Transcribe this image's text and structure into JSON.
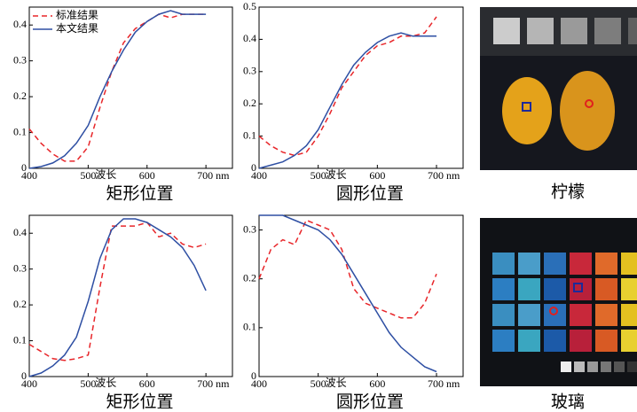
{
  "chart_data": [
    {
      "type": "line",
      "caption": "矩形位置",
      "xlabel": "波长",
      "xlim": [
        400,
        745
      ],
      "ylim": [
        0,
        0.45
      ],
      "xticks": [
        400,
        500,
        600,
        {
          "value": 700,
          "label": "700 nm"
        }
      ],
      "yticks": [
        0,
        0.1,
        0.2,
        0.3,
        0.4
      ],
      "x": [
        400,
        420,
        440,
        460,
        480,
        500,
        520,
        540,
        560,
        580,
        600,
        620,
        640,
        660,
        680,
        700
      ],
      "series": [
        {
          "name": "标准结果",
          "color": "#e8262a",
          "dash": true,
          "values": [
            0.11,
            0.07,
            0.04,
            0.02,
            0.02,
            0.06,
            0.17,
            0.27,
            0.35,
            0.39,
            0.41,
            0.43,
            0.42,
            0.43,
            0.43,
            0.43
          ]
        },
        {
          "name": "本文结果",
          "color": "#2e4fa3",
          "values": [
            0.0,
            0.005,
            0.015,
            0.035,
            0.07,
            0.12,
            0.2,
            0.27,
            0.33,
            0.38,
            0.41,
            0.43,
            0.44,
            0.43,
            0.43,
            0.43
          ]
        }
      ]
    },
    {
      "type": "line",
      "caption": "圆形位置",
      "xlabel": "波长",
      "xlim": [
        400,
        745
      ],
      "ylim": [
        0,
        0.5
      ],
      "xticks": [
        400,
        500,
        600,
        {
          "value": 700,
          "label": "700 nm"
        }
      ],
      "yticks": [
        0,
        0.1,
        0.2,
        0.3,
        0.4,
        0.5
      ],
      "x": [
        400,
        420,
        440,
        460,
        480,
        500,
        520,
        540,
        560,
        580,
        600,
        620,
        640,
        660,
        680,
        700
      ],
      "series": [
        {
          "color": "#e8262a",
          "dash": true,
          "values": [
            0.1,
            0.07,
            0.05,
            0.04,
            0.05,
            0.1,
            0.17,
            0.25,
            0.3,
            0.35,
            0.38,
            0.39,
            0.41,
            0.41,
            0.42,
            0.47
          ]
        },
        {
          "color": "#2e4fa3",
          "values": [
            0.0,
            0.01,
            0.02,
            0.04,
            0.07,
            0.12,
            0.19,
            0.26,
            0.32,
            0.36,
            0.39,
            0.41,
            0.42,
            0.41,
            0.41,
            0.41
          ]
        }
      ]
    },
    {
      "type": "line",
      "caption": "矩形位置",
      "xlabel": "波长",
      "xlim": [
        400,
        745
      ],
      "ylim": [
        0,
        0.45
      ],
      "xticks": [
        400,
        500,
        600,
        {
          "value": 700,
          "label": "700 nm"
        }
      ],
      "yticks": [
        0,
        0.1,
        0.2,
        0.3,
        0.4
      ],
      "x": [
        400,
        420,
        440,
        460,
        480,
        500,
        520,
        540,
        560,
        580,
        600,
        620,
        640,
        660,
        680,
        700
      ],
      "series": [
        {
          "color": "#e8262a",
          "dash": true,
          "values": [
            0.09,
            0.07,
            0.05,
            0.045,
            0.05,
            0.06,
            0.25,
            0.42,
            0.42,
            0.42,
            0.43,
            0.39,
            0.4,
            0.37,
            0.36,
            0.37
          ]
        },
        {
          "color": "#2e4fa3",
          "values": [
            0.0,
            0.01,
            0.03,
            0.06,
            0.11,
            0.21,
            0.33,
            0.41,
            0.44,
            0.44,
            0.43,
            0.41,
            0.39,
            0.36,
            0.31,
            0.24
          ]
        }
      ]
    },
    {
      "type": "line",
      "caption": "圆形位置",
      "xlabel": "波长",
      "xlim": [
        400,
        745
      ],
      "ylim": [
        0,
        0.33
      ],
      "xticks": [
        400,
        500,
        600,
        {
          "value": 700,
          "label": "700 nm"
        }
      ],
      "yticks": [
        0,
        0.1,
        0.2,
        0.3
      ],
      "x": [
        400,
        420,
        440,
        460,
        480,
        500,
        520,
        540,
        560,
        580,
        600,
        620,
        640,
        660,
        680,
        700
      ],
      "series": [
        {
          "color": "#e8262a",
          "dash": true,
          "values": [
            0.2,
            0.26,
            0.28,
            0.27,
            0.32,
            0.31,
            0.3,
            0.26,
            0.18,
            0.15,
            0.14,
            0.13,
            0.12,
            0.12,
            0.15,
            0.21
          ]
        },
        {
          "color": "#2e4fa3",
          "values": [
            0.33,
            0.33,
            0.33,
            0.32,
            0.31,
            0.3,
            0.28,
            0.25,
            0.21,
            0.17,
            0.13,
            0.09,
            0.06,
            0.04,
            0.02,
            0.01
          ]
        }
      ]
    }
  ],
  "images": [
    {
      "caption": "柠檬"
    },
    {
      "caption": "玻璃"
    }
  ]
}
